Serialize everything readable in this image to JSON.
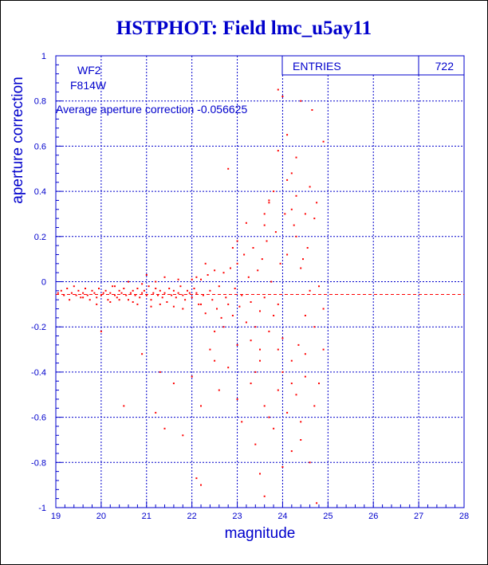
{
  "title": "HSTPHOT: Field lmc_u5ay11",
  "stats": {
    "entries_label": "ENTRIES",
    "entries_value": "722"
  },
  "chip_label": "WF2",
  "filter_label": "F814W",
  "average_text": "Average aperture correction -0.056625",
  "chart_data": {
    "type": "scatter",
    "title": "HSTPHOT: Field lmc_u5ay11",
    "xlabel": "magnitude",
    "ylabel": "aperture correction",
    "xlim": [
      19,
      28
    ],
    "ylim": [
      -1,
      1
    ],
    "x_ticks": [
      19,
      20,
      21,
      22,
      23,
      24,
      25,
      26,
      27,
      28
    ],
    "y_ticks": [
      -1,
      -0.8,
      -0.6,
      -0.4,
      -0.2,
      0,
      0.2,
      0.4,
      0.6,
      0.8,
      1
    ],
    "grid": true,
    "reference_line": {
      "y": -0.056625
    },
    "colors": {
      "points": "#ff0000",
      "axes": "#0000cc",
      "reference": "#ff0000"
    },
    "points": [
      [
        19.05,
        -0.05
      ],
      [
        19.12,
        -0.04
      ],
      [
        19.18,
        -0.06
      ],
      [
        19.25,
        -0.03
      ],
      [
        19.3,
        -0.08
      ],
      [
        19.35,
        -0.05
      ],
      [
        19.4,
        -0.02
      ],
      [
        19.45,
        -0.06
      ],
      [
        19.5,
        -0.04
      ],
      [
        19.55,
        -0.07
      ],
      [
        19.6,
        -0.05
      ],
      [
        19.65,
        -0.03
      ],
      [
        19.7,
        -0.06
      ],
      [
        19.75,
        -0.08
      ],
      [
        19.8,
        -0.04
      ],
      [
        19.85,
        -0.05
      ],
      [
        19.9,
        -0.07
      ],
      [
        19.95,
        -0.03
      ],
      [
        20.0,
        -0.06
      ],
      [
        20.05,
        -0.05
      ],
      [
        20.1,
        -0.04
      ],
      [
        20.15,
        -0.08
      ],
      [
        20.2,
        -0.05
      ],
      [
        20.25,
        -0.02
      ],
      [
        20.3,
        -0.06
      ],
      [
        20.35,
        -0.07
      ],
      [
        20.4,
        -0.04
      ],
      [
        20.45,
        -0.05
      ],
      [
        20.5,
        -0.03
      ],
      [
        20.55,
        -0.06
      ],
      [
        20.6,
        -0.08
      ],
      [
        20.65,
        -0.05
      ],
      [
        20.7,
        -0.04
      ],
      [
        20.75,
        -0.06
      ],
      [
        20.8,
        -0.03
      ],
      [
        20.85,
        -0.07
      ],
      [
        20.9,
        -0.05
      ],
      [
        20.95,
        -0.04
      ],
      [
        21.0,
        -0.06
      ],
      [
        21.05,
        -0.02
      ],
      [
        21.1,
        -0.08
      ],
      [
        21.15,
        -0.05
      ],
      [
        21.2,
        -0.03
      ],
      [
        21.25,
        -0.06
      ],
      [
        21.3,
        -0.04
      ],
      [
        21.35,
        -0.07
      ],
      [
        21.4,
        -0.05
      ],
      [
        21.45,
        -0.09
      ],
      [
        21.5,
        -0.03
      ],
      [
        21.55,
        -0.06
      ],
      [
        21.6,
        -0.04
      ],
      [
        21.65,
        -0.07
      ],
      [
        21.7,
        -0.05
      ],
      [
        21.75,
        -0.02
      ],
      [
        21.8,
        -0.06
      ],
      [
        21.85,
        -0.08
      ],
      [
        21.9,
        -0.04
      ],
      [
        21.95,
        -0.05
      ],
      [
        22.0,
        -0.07
      ],
      [
        22.05,
        -0.03
      ],
      [
        19.9,
        -0.1
      ],
      [
        20.3,
        -0.02
      ],
      [
        20.8,
        -0.1
      ],
      [
        21.2,
        0.0
      ],
      [
        21.6,
        -0.11
      ],
      [
        22.0,
        0.01
      ],
      [
        20.6,
        0.0
      ],
      [
        21.4,
        0.02
      ],
      [
        22.2,
        -0.1
      ],
      [
        20.2,
        -0.09
      ],
      [
        21.0,
        0.03
      ],
      [
        21.8,
        -0.12
      ],
      [
        20.9,
        -0.01
      ],
      [
        21.3,
        -0.1
      ],
      [
        20.4,
        -0.08
      ],
      [
        21.7,
        0.01
      ],
      [
        19.6,
        -0.07
      ],
      [
        20.7,
        -0.09
      ],
      [
        21.1,
        -0.11
      ],
      [
        22.1,
        0.02
      ],
      [
        22.1,
        -0.05
      ],
      [
        22.15,
        -0.1
      ],
      [
        22.2,
        0.01
      ],
      [
        22.25,
        -0.06
      ],
      [
        22.3,
        -0.14
      ],
      [
        22.35,
        0.03
      ],
      [
        22.4,
        -0.04
      ],
      [
        22.45,
        -0.08
      ],
      [
        22.5,
        0.05
      ],
      [
        22.55,
        -0.12
      ],
      [
        22.6,
        -0.02
      ],
      [
        22.65,
        -0.16
      ],
      [
        22.7,
        0.04
      ],
      [
        22.75,
        -0.07
      ],
      [
        22.8,
        -0.1
      ],
      [
        22.85,
        0.06
      ],
      [
        22.9,
        -0.15
      ],
      [
        22.95,
        -0.03
      ],
      [
        23.0,
        0.08
      ],
      [
        23.05,
        -0.11
      ],
      [
        23.1,
        -0.06
      ],
      [
        23.15,
        0.12
      ],
      [
        23.2,
        -0.18
      ],
      [
        23.25,
        0.02
      ],
      [
        23.3,
        -0.09
      ],
      [
        23.35,
        0.15
      ],
      [
        23.4,
        -0.2
      ],
      [
        23.45,
        0.05
      ],
      [
        23.5,
        -0.13
      ],
      [
        23.55,
        0.1
      ],
      [
        23.6,
        -0.07
      ],
      [
        23.65,
        0.18
      ],
      [
        23.7,
        -0.22
      ],
      [
        23.75,
        0.0
      ],
      [
        23.8,
        -0.15
      ],
      [
        23.85,
        0.22
      ],
      [
        23.9,
        -0.1
      ],
      [
        23.95,
        0.08
      ],
      [
        24.0,
        -0.25
      ],
      [
        24.05,
        0.3
      ],
      [
        22.3,
        0.08
      ],
      [
        22.7,
        -0.2
      ],
      [
        23.0,
        0.18
      ],
      [
        23.3,
        -0.26
      ],
      [
        23.6,
        0.25
      ],
      [
        23.8,
        0.4
      ],
      [
        23.9,
        -0.3
      ],
      [
        24.1,
        0.45
      ],
      [
        24.2,
        -0.35
      ],
      [
        24.3,
        0.2
      ],
      [
        22.5,
        -0.22
      ],
      [
        22.9,
        0.15
      ],
      [
        23.2,
        0.26
      ],
      [
        23.5,
        -0.3
      ],
      [
        23.7,
        0.35
      ],
      [
        24.0,
        -0.4
      ],
      [
        24.2,
        0.32
      ],
      [
        24.35,
        -0.28
      ],
      [
        24.45,
        0.1
      ],
      [
        24.5,
        -0.15
      ],
      [
        20.0,
        -0.22
      ],
      [
        20.9,
        -0.32
      ],
      [
        21.3,
        -0.4
      ],
      [
        21.6,
        -0.45
      ],
      [
        21.2,
        -0.58
      ],
      [
        21.8,
        -0.68
      ],
      [
        22.0,
        -0.42
      ],
      [
        22.2,
        -0.55
      ],
      [
        22.4,
        -0.3
      ],
      [
        22.6,
        -0.48
      ],
      [
        22.8,
        -0.38
      ],
      [
        23.0,
        -0.52
      ],
      [
        23.1,
        -0.62
      ],
      [
        23.3,
        -0.45
      ],
      [
        23.4,
        -0.72
      ],
      [
        23.5,
        -0.35
      ],
      [
        23.6,
        -0.55
      ],
      [
        23.8,
        -0.65
      ],
      [
        23.9,
        -0.48
      ],
      [
        24.1,
        -0.58
      ],
      [
        24.2,
        -0.75
      ],
      [
        24.3,
        -0.5
      ],
      [
        24.4,
        -0.62
      ],
      [
        24.5,
        -0.42
      ],
      [
        24.6,
        -0.8
      ],
      [
        24.7,
        -0.55
      ],
      [
        22.1,
        -0.87
      ],
      [
        22.2,
        -0.9
      ],
      [
        23.6,
        -0.95
      ],
      [
        24.75,
        -0.98
      ],
      [
        24.0,
        -0.82
      ],
      [
        23.5,
        -0.85
      ],
      [
        20.5,
        -0.55
      ],
      [
        21.4,
        -0.65
      ],
      [
        22.5,
        -0.35
      ],
      [
        23.0,
        -0.28
      ],
      [
        23.4,
        -0.4
      ],
      [
        23.7,
        -0.6
      ],
      [
        24.2,
        -0.45
      ],
      [
        24.4,
        -0.7
      ],
      [
        23.9,
        0.85
      ],
      [
        24.0,
        0.82
      ],
      [
        24.4,
        0.8
      ],
      [
        24.65,
        0.76
      ],
      [
        24.9,
        0.62
      ],
      [
        24.1,
        0.65
      ],
      [
        24.3,
        0.55
      ],
      [
        23.9,
        0.58
      ],
      [
        22.8,
        0.5
      ],
      [
        24.2,
        0.48
      ],
      [
        23.7,
        0.36
      ],
      [
        24.3,
        0.38
      ],
      [
        23.6,
        0.3
      ],
      [
        24.5,
        0.3
      ],
      [
        24.6,
        0.42
      ],
      [
        24.7,
        0.28
      ],
      [
        24.1,
        0.12
      ],
      [
        24.4,
        0.06
      ],
      [
        24.6,
        -0.04
      ],
      [
        24.8,
        -0.02
      ],
      [
        24.9,
        -0.12
      ],
      [
        24.7,
        -0.2
      ],
      [
        24.5,
        -0.32
      ],
      [
        24.8,
        -0.45
      ],
      [
        24.9,
        -0.3
      ],
      [
        24.55,
        0.15
      ],
      [
        24.75,
        0.35
      ],
      [
        24.25,
        0.25
      ]
    ]
  }
}
